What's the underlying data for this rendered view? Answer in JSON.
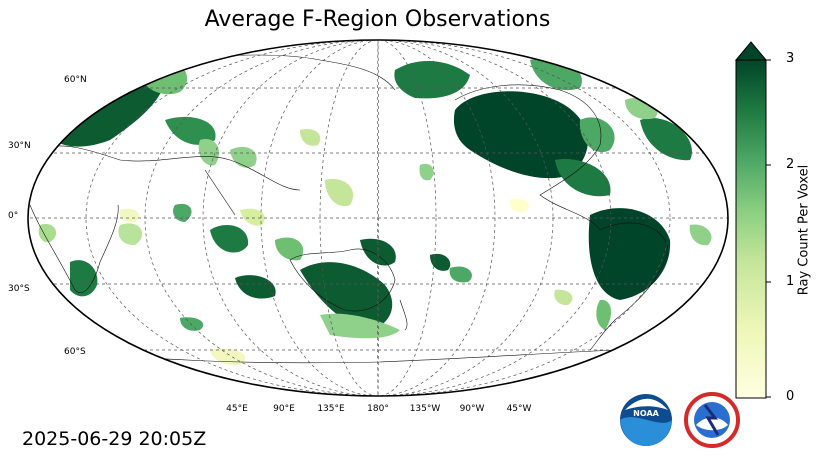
{
  "title": "Average F-Region Observations",
  "timestamp": "2025-06-29 20:05Z",
  "lat_labels": [
    "60°N",
    "30°N",
    "0°",
    "30°S",
    "60°S"
  ],
  "lon_labels": [
    "45°E",
    "90°E",
    "135°E",
    "180°",
    "135°W",
    "90°W",
    "45°W"
  ],
  "colorbar": {
    "label": "Ray Count Per Voxel",
    "ticks": [
      "0",
      "1",
      "2",
      "3"
    ],
    "min": 0,
    "max": 3,
    "extend": "max",
    "colormap": "YlGn",
    "colors": {
      "low": "#ffffe0",
      "mid": "#78c679",
      "high": "#004529"
    }
  },
  "logos": [
    "noaa-logo",
    "national-weather-service-logo"
  ]
}
